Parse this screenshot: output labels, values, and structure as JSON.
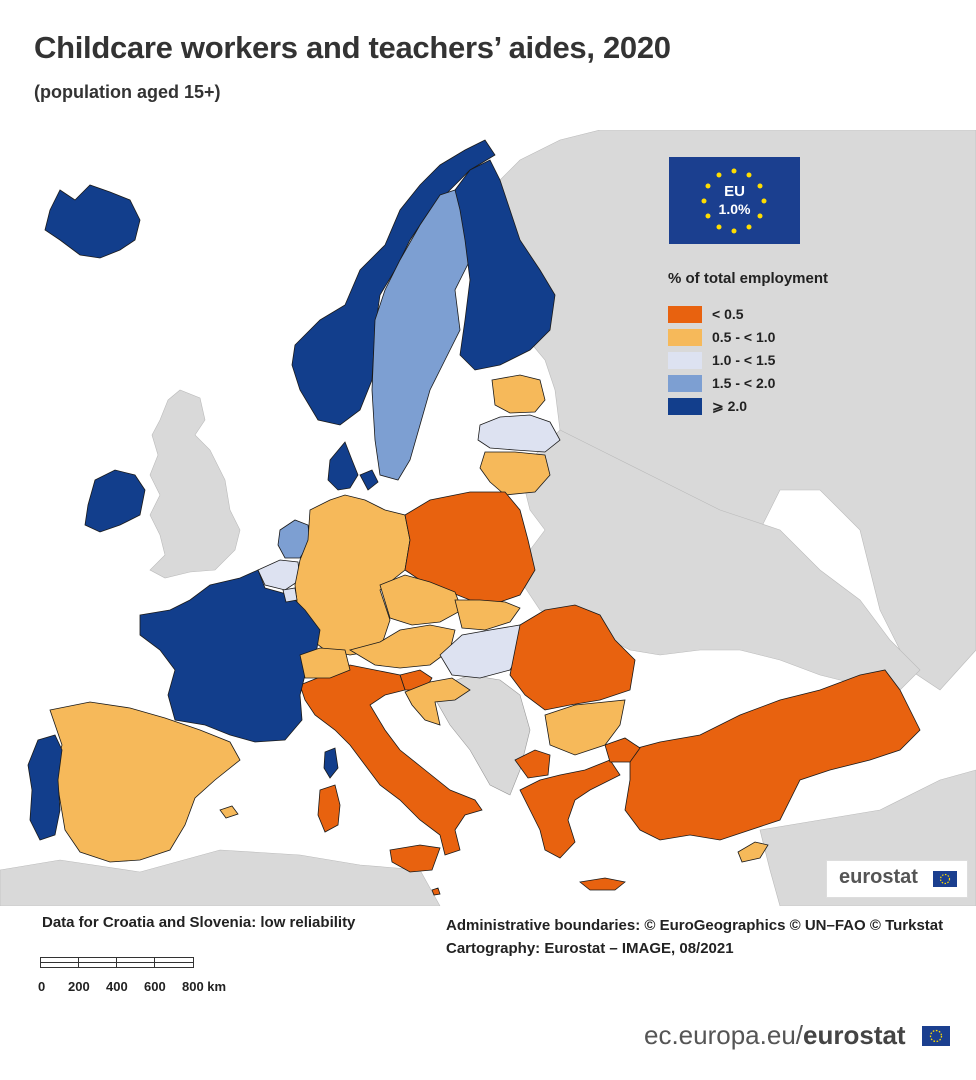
{
  "title": "Childcare workers and teachers’ aides, 2020",
  "subtitle": "(population aged 15+)",
  "eu_box": {
    "label": "EU",
    "value": "1.0%"
  },
  "legend": {
    "title": "% of total employment",
    "items": [
      {
        "label": "< 0.5",
        "color": "#e8620f"
      },
      {
        "label": "0.5 - < 1.0",
        "color": "#f6b95a"
      },
      {
        "label": "1.0 - < 1.5",
        "color": "#dde2f1"
      },
      {
        "label": "1.5 - < 2.0",
        "color": "#7d9fd2"
      },
      {
        "label": "⩾ 2.0",
        "color": "#123e8c"
      }
    ]
  },
  "colors": {
    "no_data": "#d9d9d9",
    "sea": "#ffffff",
    "border": "#1a1a1a"
  },
  "note": "Data for Croatia and Slovenia: low reliability",
  "credits": {
    "line1": "Administrative boundaries: © EuroGeographics © UN–FAO © Turkstat",
    "line2": "Cartography: Eurostat – IMAGE, 08/2021"
  },
  "scale": {
    "ticks": [
      "0",
      "200",
      "400",
      "600",
      "800 km"
    ]
  },
  "brand": "eurostat",
  "url": {
    "prefix": "ec.europa.eu/",
    "brand": "eurostat"
  }
}
